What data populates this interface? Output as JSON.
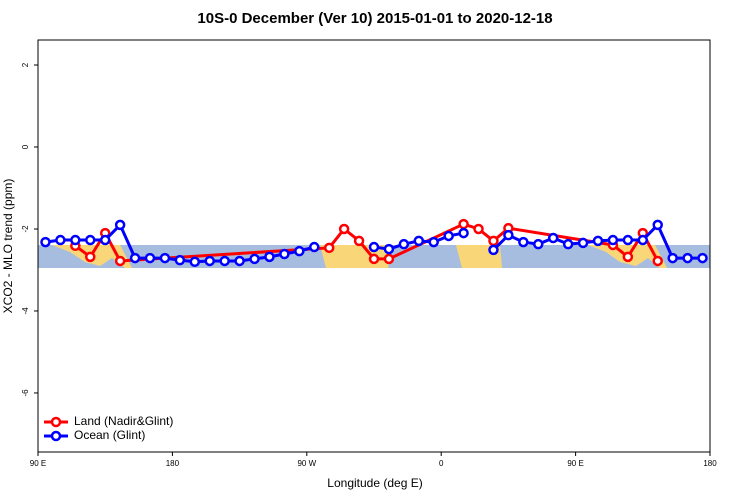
{
  "chart_data": {
    "type": "line",
    "title": "10S-0 December (Ver 10)   2015-01-01 to 2020-12-18",
    "x_label": "Longitude (deg E)",
    "y_label": "XCO2 - MLO trend (ppm)",
    "xlim": [
      90,
      540
    ],
    "ylim": [
      -7.44,
      2.61
    ],
    "xticks": [
      {
        "value": 90,
        "label": "90 E"
      },
      180,
      {
        "value": 270,
        "label": "90 W"
      },
      {
        "value": 360,
        "label": "0"
      },
      {
        "value": 450,
        "label": "90 E"
      },
      {
        "value": 540,
        "label": "180"
      }
    ],
    "yticks": [
      2,
      0,
      -2,
      -4,
      -6
    ],
    "legend": "bottom-left",
    "series": [
      {
        "name": "Land (Nadir&Glint)",
        "color": "#ff0000",
        "x": [
          115,
          125,
          135,
          145,
          285,
          295,
          305,
          315,
          325,
          375,
          385,
          395,
          405,
          475,
          485,
          495,
          505
        ],
        "values": [
          -2.41,
          -2.68,
          -2.1,
          -2.78,
          -2.46,
          -2.0,
          -2.29,
          -2.73,
          -2.73,
          -1.88,
          -2.0,
          -2.29,
          -1.98,
          -2.39,
          -2.68,
          -2.1,
          -2.78
        ]
      },
      {
        "name": "Ocean (Glint)",
        "color": "#0000ff",
        "x": [
          95,
          105,
          115,
          125,
          135,
          145,
          155,
          165,
          175,
          185,
          195,
          205,
          215,
          225,
          235,
          245,
          255,
          265,
          275,
          285,
          295,
          305,
          315,
          325,
          335,
          345,
          355,
          365,
          375,
          385,
          395,
          405,
          415,
          425,
          435,
          445,
          455,
          465,
          475,
          485,
          495,
          505,
          515,
          525,
          535
        ],
        "values": [
          -2.32,
          -2.27,
          -2.27,
          -2.27,
          -2.27,
          -1.9,
          -2.71,
          -2.71,
          -2.71,
          -2.76,
          -2.8,
          -2.78,
          -2.78,
          -2.78,
          -2.73,
          -2.68,
          -2.61,
          -2.54,
          -2.44,
          null,
          null,
          null,
          -2.44,
          -2.49,
          -2.37,
          -2.29,
          -2.32,
          -2.17,
          -2.1,
          null,
          -2.51,
          -2.15,
          -2.32,
          -2.37,
          -2.22,
          -2.37,
          -2.34,
          -2.29,
          -2.27,
          -2.27,
          -2.27,
          -1.9,
          -2.71,
          -2.71,
          -2.71
        ]
      }
    ]
  }
}
